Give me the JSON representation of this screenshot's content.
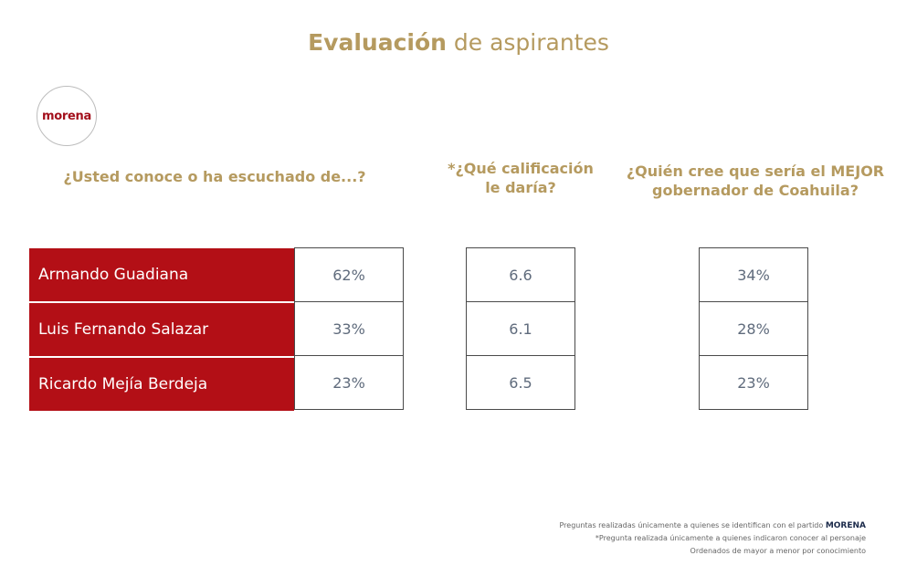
{
  "header": {
    "title_strong": "Evaluación",
    "title_rest": " de aspirantes",
    "logo_text": "morena"
  },
  "chart_data": {
    "type": "table",
    "columns": [
      "¿Usted conoce o ha escuchado de...?",
      "*¿Qué calificación le daría?",
      "¿Quién cree que sería el MEJOR gobernador de Coahuila?"
    ],
    "rows": [
      {
        "name": "Armando Guadiana",
        "conoce": "62%",
        "calificacion": "6.6",
        "mejor": "34%"
      },
      {
        "name": "Luis Fernando Salazar",
        "conoce": "33%",
        "calificacion": "6.1",
        "mejor": "28%"
      },
      {
        "name": "Ricardo Mejía Berdeja",
        "conoce": "23%",
        "calificacion": "6.5",
        "mejor": "23%"
      }
    ]
  },
  "footer": {
    "line1_prefix": "Preguntas realizadas únicamente a quienes se identifican con el partido ",
    "line1_party": "MORENA",
    "line2": "*Pregunta realizada únicamente a quienes indicaron conocer al personaje",
    "line3": "Ordenados de mayor a menor por conocimiento"
  },
  "colors": {
    "gold": "#b59a5f",
    "red": "#b30f16"
  }
}
